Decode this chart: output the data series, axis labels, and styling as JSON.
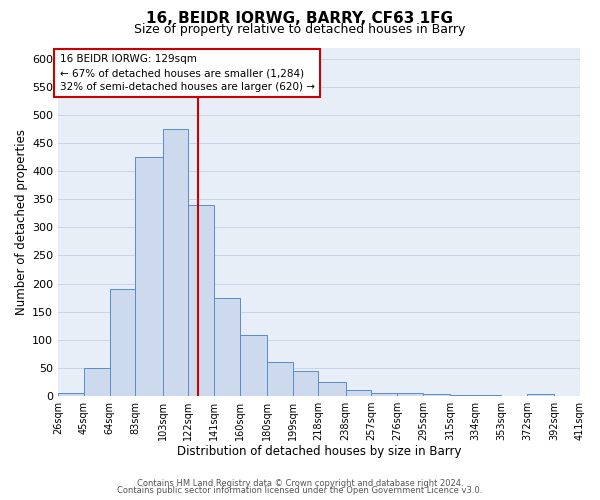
{
  "title": "16, BEIDR IORWG, BARRY, CF63 1FG",
  "subtitle": "Size of property relative to detached houses in Barry",
  "xlabel": "Distribution of detached houses by size in Barry",
  "ylabel": "Number of detached properties",
  "bar_lefts": [
    26,
    45,
    64,
    83,
    103,
    122,
    141,
    160,
    180,
    199,
    218,
    238,
    257,
    276,
    295,
    315,
    334,
    353,
    372,
    392
  ],
  "bar_rights": [
    45,
    64,
    83,
    103,
    122,
    141,
    160,
    180,
    199,
    218,
    238,
    257,
    276,
    295,
    315,
    334,
    353,
    372,
    392,
    411
  ],
  "bar_heights": [
    5,
    50,
    190,
    425,
    475,
    340,
    175,
    108,
    60,
    44,
    25,
    10,
    5,
    5,
    3,
    2,
    2,
    0,
    3,
    0
  ],
  "tick_labels": [
    "26sqm",
    "45sqm",
    "64sqm",
    "83sqm",
    "103sqm",
    "122sqm",
    "141sqm",
    "160sqm",
    "180sqm",
    "199sqm",
    "218sqm",
    "238sqm",
    "257sqm",
    "276sqm",
    "295sqm",
    "315sqm",
    "334sqm",
    "353sqm",
    "372sqm",
    "392sqm",
    "411sqm"
  ],
  "tick_positions": [
    26,
    45,
    64,
    83,
    103,
    122,
    141,
    160,
    180,
    199,
    218,
    238,
    257,
    276,
    295,
    315,
    334,
    353,
    372,
    392,
    411
  ],
  "bar_color": "#cdd9ed",
  "bar_edge_color": "#5b8cc8",
  "vline_x": 129,
  "vline_color": "#cc0000",
  "xlim": [
    26,
    411
  ],
  "ylim": [
    0,
    620
  ],
  "yticks": [
    0,
    50,
    100,
    150,
    200,
    250,
    300,
    350,
    400,
    450,
    500,
    550,
    600
  ],
  "annotation_title": "16 BEIDR IORWG: 129sqm",
  "annotation_line1": "← 67% of detached houses are smaller (1,284)",
  "annotation_line2": "32% of semi-detached houses are larger (620) →",
  "annotation_box_facecolor": "#ffffff",
  "annotation_box_edgecolor": "#cc0000",
  "footer1": "Contains HM Land Registry data © Crown copyright and database right 2024.",
  "footer2": "Contains public sector information licensed under the Open Government Licence v3.0.",
  "bg_color": "#ffffff",
  "plot_bg_color": "#e8eef8",
  "grid_color": "#c8d4e8"
}
